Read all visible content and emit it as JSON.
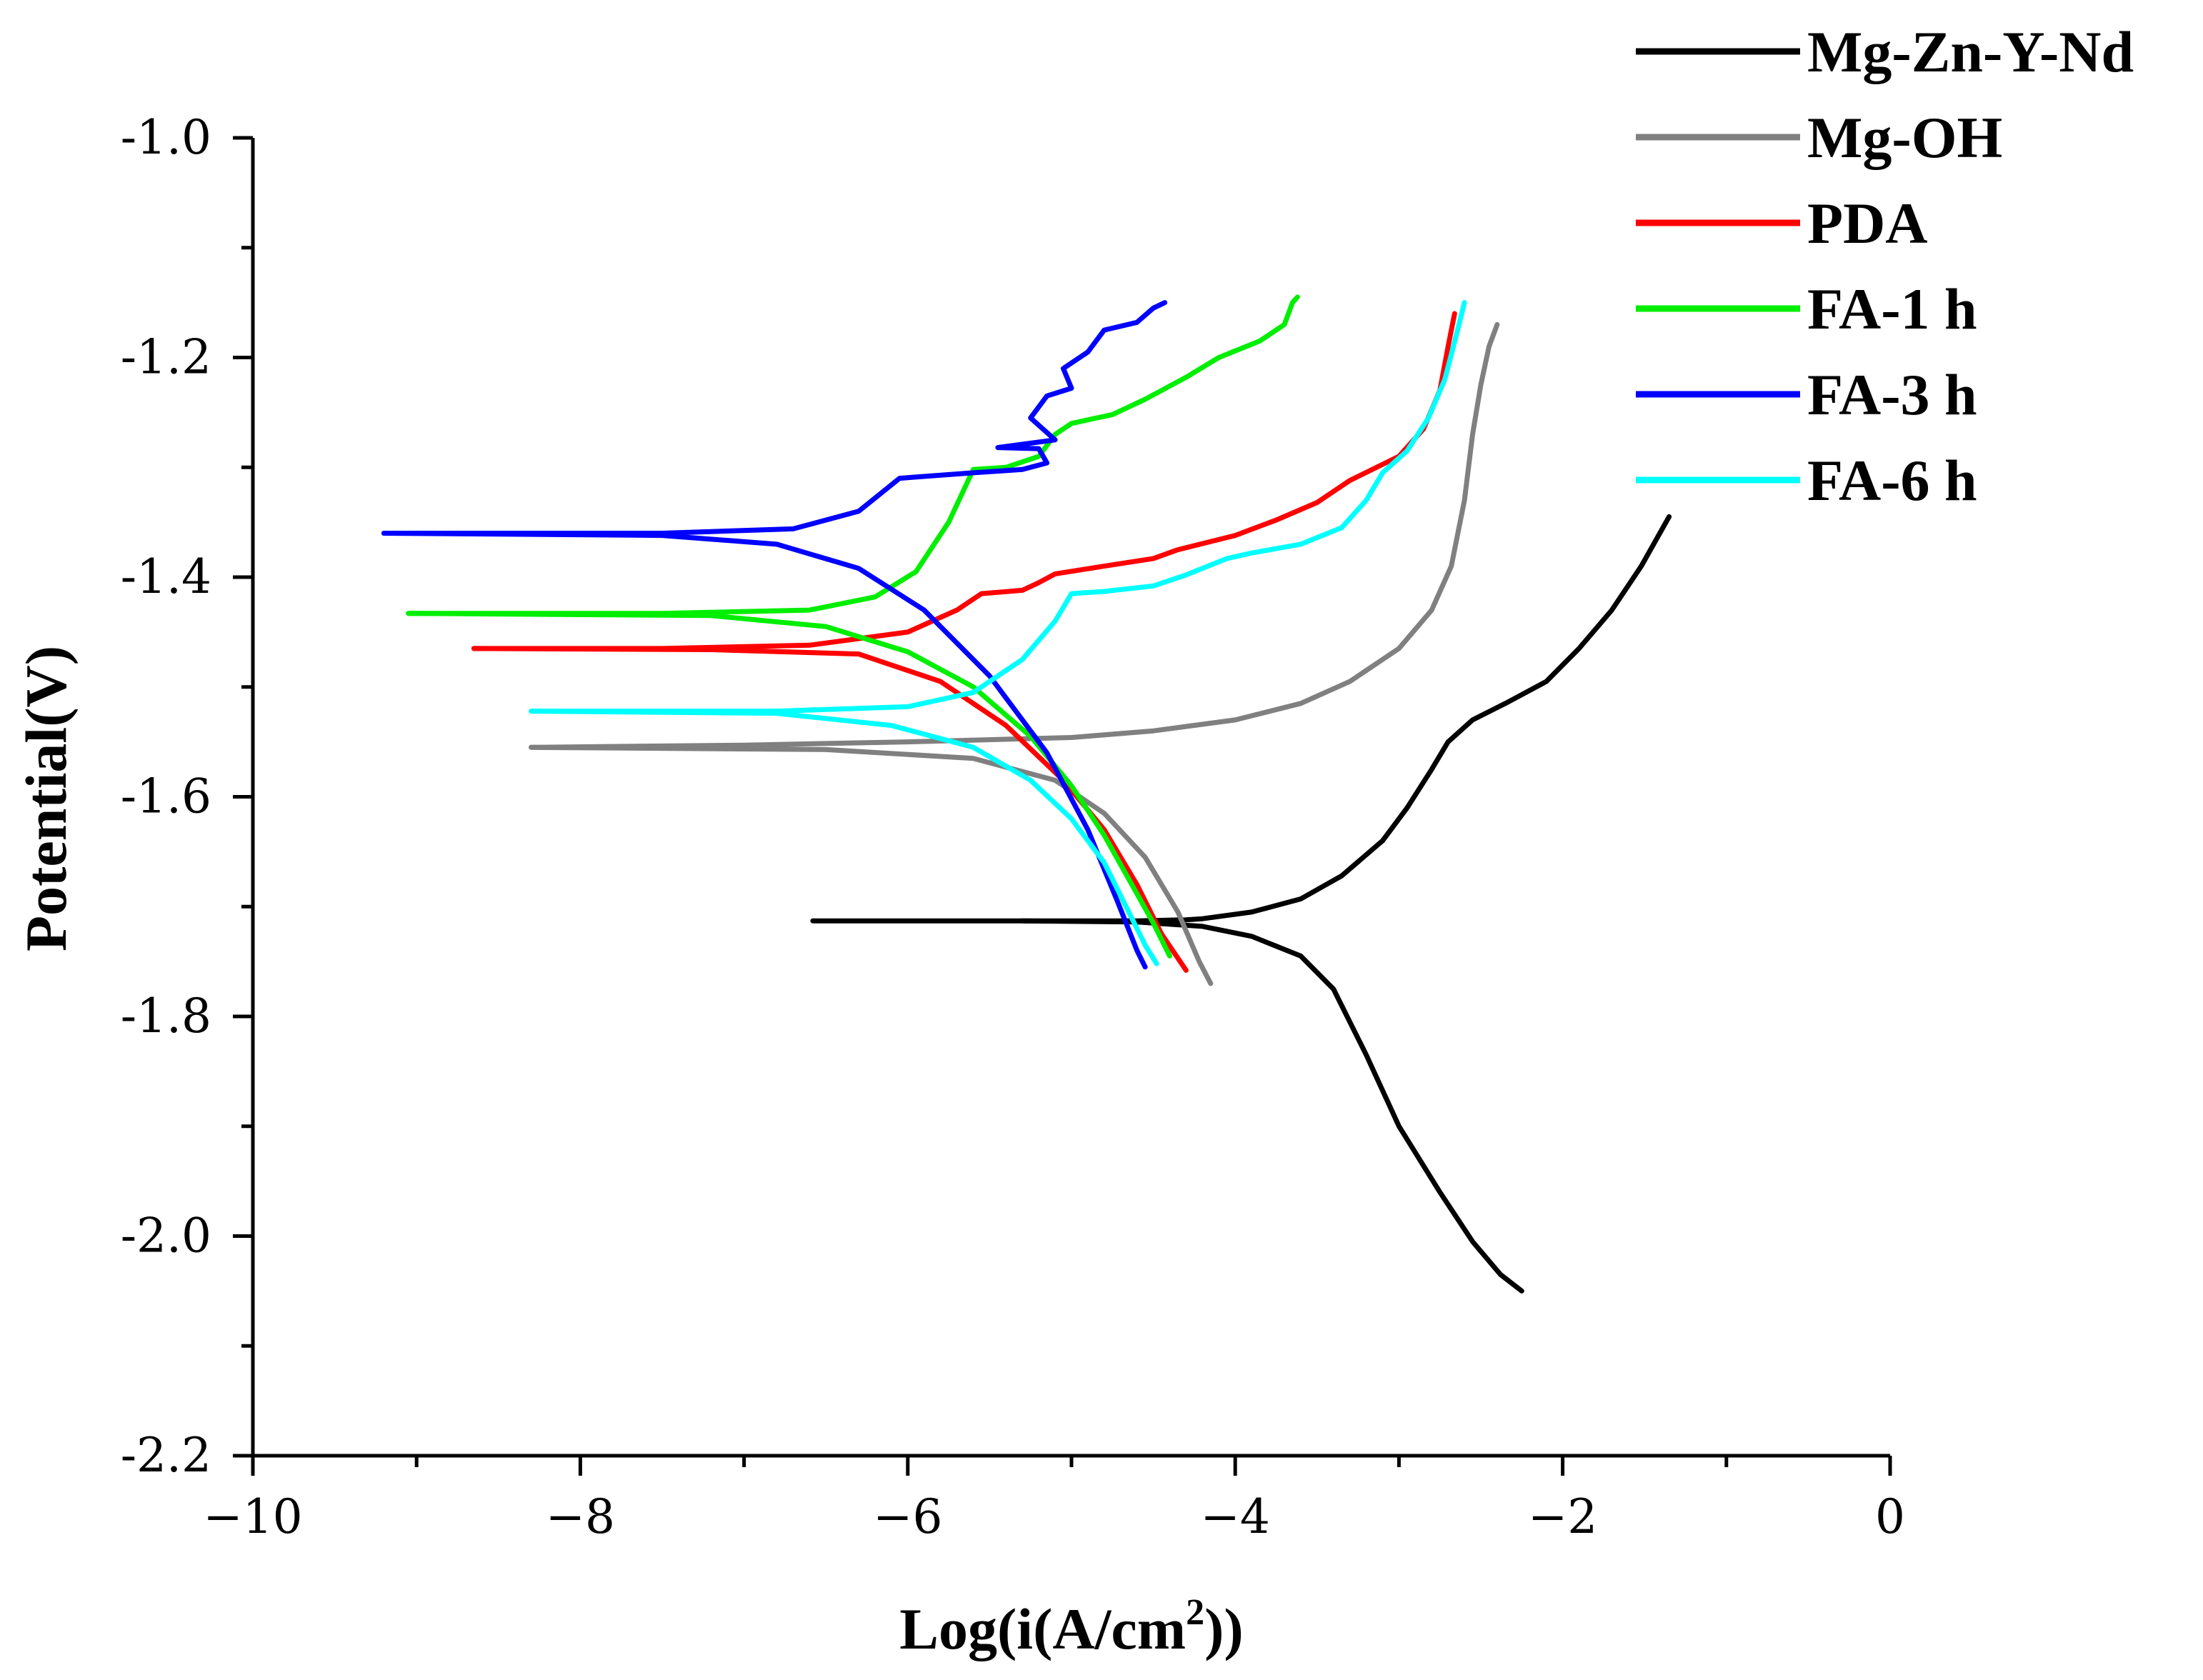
{
  "chart_data": {
    "type": "line",
    "title": "",
    "xlabel": "Log(i(A/cm",
    "xlabel_sup": "2",
    "xlabel_end": "))",
    "ylabel": "Potential(V)",
    "xlim": [
      -10,
      0
    ],
    "ylim": [
      -2.2,
      -1.0
    ],
    "x_ticks": [
      -10,
      -8,
      -6,
      -4,
      -2,
      0
    ],
    "x_tick_labels": [
      "−10",
      "−8",
      "−6",
      "−4",
      "−2",
      "0"
    ],
    "y_ticks": [
      -1.0,
      -1.2,
      -1.4,
      -1.6,
      -1.8,
      -2.0,
      -2.2
    ],
    "y_tick_labels": [
      "-1.0",
      "-1.2",
      "-1.4",
      "-1.6",
      "-1.8",
      "-2.0",
      "-2.2"
    ],
    "legend_position": "top-right",
    "series": [
      {
        "name": "Mg-Zn-Y-Nd",
        "color": "#000000",
        "points": [
          [
            -6.58,
            -1.713
          ],
          [
            -5.5,
            -1.713
          ],
          [
            -4.6,
            -1.713
          ],
          [
            -4.3,
            -1.712
          ],
          [
            -4.2,
            -1.711
          ],
          [
            -3.9,
            -1.705
          ],
          [
            -3.6,
            -1.693
          ],
          [
            -3.35,
            -1.672
          ],
          [
            -3.1,
            -1.64
          ],
          [
            -2.95,
            -1.61
          ],
          [
            -2.8,
            -1.575
          ],
          [
            -2.7,
            -1.55
          ],
          [
            -2.55,
            -1.53
          ],
          [
            -2.35,
            -1.515
          ],
          [
            -2.1,
            -1.495
          ],
          [
            -1.9,
            -1.465
          ],
          [
            -1.7,
            -1.43
          ],
          [
            -1.52,
            -1.39
          ],
          [
            -1.35,
            -1.345
          ]
        ],
        "points_lower": [
          [
            -5.3,
            -1.713
          ],
          [
            -4.6,
            -1.714
          ],
          [
            -4.2,
            -1.718
          ],
          [
            -3.9,
            -1.727
          ],
          [
            -3.6,
            -1.745
          ],
          [
            -3.4,
            -1.775
          ],
          [
            -3.2,
            -1.835
          ],
          [
            -3.0,
            -1.9
          ],
          [
            -2.75,
            -1.96
          ],
          [
            -2.55,
            -2.005
          ],
          [
            -2.38,
            -2.035
          ],
          [
            -2.25,
            -2.05
          ]
        ]
      },
      {
        "name": "Mg-OH",
        "color": "#808080",
        "points": [
          [
            -8.3,
            -1.555
          ],
          [
            -7.0,
            -1.553
          ],
          [
            -6.0,
            -1.55
          ],
          [
            -5.0,
            -1.546
          ],
          [
            -4.5,
            -1.54
          ],
          [
            -4.0,
            -1.53
          ],
          [
            -3.6,
            -1.515
          ],
          [
            -3.3,
            -1.495
          ],
          [
            -3.0,
            -1.465
          ],
          [
            -2.8,
            -1.43
          ],
          [
            -2.68,
            -1.39
          ],
          [
            -2.6,
            -1.33
          ],
          [
            -2.55,
            -1.27
          ],
          [
            -2.5,
            -1.225
          ],
          [
            -2.45,
            -1.19
          ],
          [
            -2.4,
            -1.17
          ]
        ],
        "points_lower": [
          [
            -8.3,
            -1.555
          ],
          [
            -6.5,
            -1.557
          ],
          [
            -5.6,
            -1.565
          ],
          [
            -5.1,
            -1.585
          ],
          [
            -4.8,
            -1.615
          ],
          [
            -4.55,
            -1.655
          ],
          [
            -4.35,
            -1.705
          ],
          [
            -4.22,
            -1.75
          ],
          [
            -4.15,
            -1.77
          ]
        ]
      },
      {
        "name": "PDA",
        "color": "#ff0000",
        "points": [
          [
            -8.65,
            -1.465
          ],
          [
            -7.5,
            -1.465
          ],
          [
            -6.6,
            -1.462
          ],
          [
            -6.0,
            -1.45
          ],
          [
            -5.7,
            -1.43
          ],
          [
            -5.55,
            -1.415
          ],
          [
            -5.3,
            -1.412
          ],
          [
            -5.2,
            -1.405
          ],
          [
            -5.1,
            -1.397
          ],
          [
            -4.8,
            -1.39
          ],
          [
            -4.5,
            -1.383
          ],
          [
            -4.35,
            -1.375
          ],
          [
            -4.0,
            -1.362
          ],
          [
            -3.75,
            -1.348
          ],
          [
            -3.5,
            -1.332
          ],
          [
            -3.3,
            -1.312
          ],
          [
            -3.0,
            -1.29
          ],
          [
            -2.85,
            -1.265
          ],
          [
            -2.75,
            -1.23
          ],
          [
            -2.7,
            -1.19
          ],
          [
            -2.66,
            -1.16
          ]
        ],
        "points_lower": [
          [
            -8.65,
            -1.465
          ],
          [
            -7.2,
            -1.466
          ],
          [
            -6.3,
            -1.47
          ],
          [
            -5.8,
            -1.495
          ],
          [
            -5.4,
            -1.535
          ],
          [
            -5.05,
            -1.585
          ],
          [
            -4.8,
            -1.63
          ],
          [
            -4.6,
            -1.68
          ],
          [
            -4.45,
            -1.725
          ],
          [
            -4.3,
            -1.758
          ]
        ]
      },
      {
        "name": "FA-1 h",
        "color": "#00ee00",
        "points": [
          [
            -9.05,
            -1.433
          ],
          [
            -7.5,
            -1.433
          ],
          [
            -6.6,
            -1.43
          ],
          [
            -6.2,
            -1.418
          ],
          [
            -5.95,
            -1.395
          ],
          [
            -5.75,
            -1.35
          ],
          [
            -5.6,
            -1.302
          ],
          [
            -5.4,
            -1.3
          ],
          [
            -5.2,
            -1.29
          ],
          [
            -5.1,
            -1.27
          ],
          [
            -5.0,
            -1.26
          ],
          [
            -4.75,
            -1.252
          ],
          [
            -4.55,
            -1.238
          ],
          [
            -4.3,
            -1.218
          ],
          [
            -4.1,
            -1.2
          ],
          [
            -3.85,
            -1.185
          ],
          [
            -3.7,
            -1.17
          ],
          [
            -3.65,
            -1.15
          ],
          [
            -3.62,
            -1.145
          ]
        ],
        "points_lower": [
          [
            -9.05,
            -1.433
          ],
          [
            -7.2,
            -1.435
          ],
          [
            -6.5,
            -1.445
          ],
          [
            -6.0,
            -1.468
          ],
          [
            -5.6,
            -1.5
          ],
          [
            -5.25,
            -1.545
          ],
          [
            -5.0,
            -1.59
          ],
          [
            -4.8,
            -1.635
          ],
          [
            -4.65,
            -1.675
          ],
          [
            -4.5,
            -1.715
          ],
          [
            -4.4,
            -1.745
          ]
        ]
      },
      {
        "name": "FA-3 h",
        "color": "#0000ff",
        "points": [
          [
            -9.2,
            -1.36
          ],
          [
            -7.5,
            -1.36
          ],
          [
            -6.7,
            -1.356
          ],
          [
            -6.3,
            -1.34
          ],
          [
            -6.05,
            -1.31
          ],
          [
            -5.6,
            -1.305
          ],
          [
            -5.3,
            -1.302
          ],
          [
            -5.15,
            -1.296
          ],
          [
            -5.2,
            -1.283
          ],
          [
            -5.45,
            -1.282
          ],
          [
            -5.1,
            -1.275
          ],
          [
            -5.25,
            -1.255
          ],
          [
            -5.15,
            -1.235
          ],
          [
            -5.0,
            -1.228
          ],
          [
            -5.05,
            -1.21
          ],
          [
            -4.9,
            -1.195
          ],
          [
            -4.8,
            -1.175
          ],
          [
            -4.6,
            -1.168
          ],
          [
            -4.5,
            -1.155
          ],
          [
            -4.43,
            -1.15
          ]
        ],
        "points_lower": [
          [
            -9.2,
            -1.36
          ],
          [
            -7.5,
            -1.362
          ],
          [
            -6.8,
            -1.37
          ],
          [
            -6.3,
            -1.392
          ],
          [
            -5.9,
            -1.43
          ],
          [
            -5.5,
            -1.49
          ],
          [
            -5.15,
            -1.56
          ],
          [
            -4.9,
            -1.63
          ],
          [
            -4.72,
            -1.695
          ],
          [
            -4.6,
            -1.74
          ],
          [
            -4.55,
            -1.755
          ]
        ]
      },
      {
        "name": "FA-6 h",
        "color": "#00ffff",
        "points": [
          [
            -8.3,
            -1.522
          ],
          [
            -6.8,
            -1.522
          ],
          [
            -6.0,
            -1.518
          ],
          [
            -5.6,
            -1.505
          ],
          [
            -5.3,
            -1.475
          ],
          [
            -5.1,
            -1.44
          ],
          [
            -5.0,
            -1.415
          ],
          [
            -4.8,
            -1.413
          ],
          [
            -4.5,
            -1.408
          ],
          [
            -4.3,
            -1.398
          ],
          [
            -4.05,
            -1.383
          ],
          [
            -3.9,
            -1.378
          ],
          [
            -3.6,
            -1.37
          ],
          [
            -3.35,
            -1.355
          ],
          [
            -3.2,
            -1.33
          ],
          [
            -3.1,
            -1.305
          ],
          [
            -2.95,
            -1.285
          ],
          [
            -2.82,
            -1.255
          ],
          [
            -2.72,
            -1.22
          ],
          [
            -2.65,
            -1.18
          ],
          [
            -2.6,
            -1.15
          ]
        ],
        "points_lower": [
          [
            -8.3,
            -1.522
          ],
          [
            -6.8,
            -1.524
          ],
          [
            -6.1,
            -1.535
          ],
          [
            -5.6,
            -1.555
          ],
          [
            -5.25,
            -1.585
          ],
          [
            -5.0,
            -1.62
          ],
          [
            -4.8,
            -1.66
          ],
          [
            -4.65,
            -1.705
          ],
          [
            -4.55,
            -1.735
          ],
          [
            -4.48,
            -1.752
          ]
        ]
      }
    ]
  }
}
